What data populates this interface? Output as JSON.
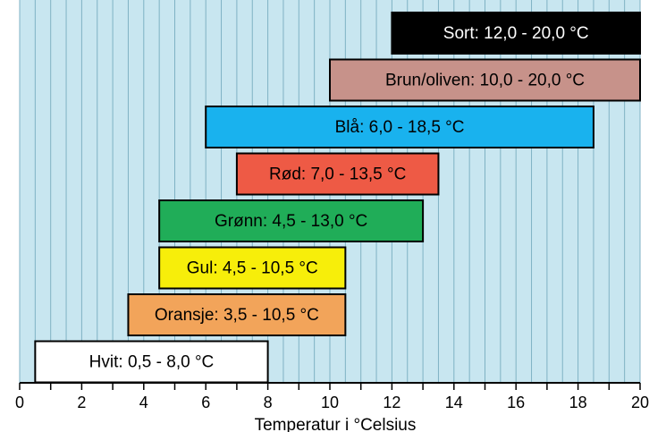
{
  "chart_data": {
    "type": "bar",
    "orientation": "horizontal-range",
    "xlabel": "Temperatur i °Celsius",
    "xlim": [
      0,
      20
    ],
    "x_ticks": [
      "0",
      "2",
      "4",
      "6",
      "8",
      "10",
      "12",
      "14",
      "16",
      "18",
      "20"
    ],
    "grid": "vertical lines every 0.5 °C",
    "background_color": "#c8e6f0",
    "grid_color": "#7fb2c4",
    "bars": [
      {
        "label": "Sort: 12,0 - 20,0 °C",
        "start": 12.0,
        "end": 20.0,
        "color": "#000000",
        "text_color": "#ffffff"
      },
      {
        "label": "Brun/oliven: 10,0 - 20,0 °C",
        "start": 10.0,
        "end": 20.0,
        "color": "#c7928a",
        "text_color": "#000000"
      },
      {
        "label": "Blå: 6,0 - 18,5 °C",
        "start": 6.0,
        "end": 18.5,
        "color": "#19b2ee",
        "text_color": "#000000"
      },
      {
        "label": "Rød: 7,0 - 13,5 °C",
        "start": 7.0,
        "end": 13.5,
        "color": "#ee5a45",
        "text_color": "#000000"
      },
      {
        "label": "Grønn: 4,5 - 13,0 °C",
        "start": 4.5,
        "end": 13.0,
        "color": "#20ad58",
        "text_color": "#000000"
      },
      {
        "label": "Gul: 4,5 - 10,5 °C",
        "start": 4.5,
        "end": 10.5,
        "color": "#f7ee0a",
        "text_color": "#000000"
      },
      {
        "label": "Oransje: 3,5 - 10,5 °C",
        "start": 3.5,
        "end": 10.5,
        "color": "#f2a45a",
        "text_color": "#000000"
      },
      {
        "label": "Hvit: 0,5 - 8,0 °C",
        "start": 0.5,
        "end": 8.0,
        "color": "#ffffff",
        "text_color": "#000000"
      }
    ]
  }
}
